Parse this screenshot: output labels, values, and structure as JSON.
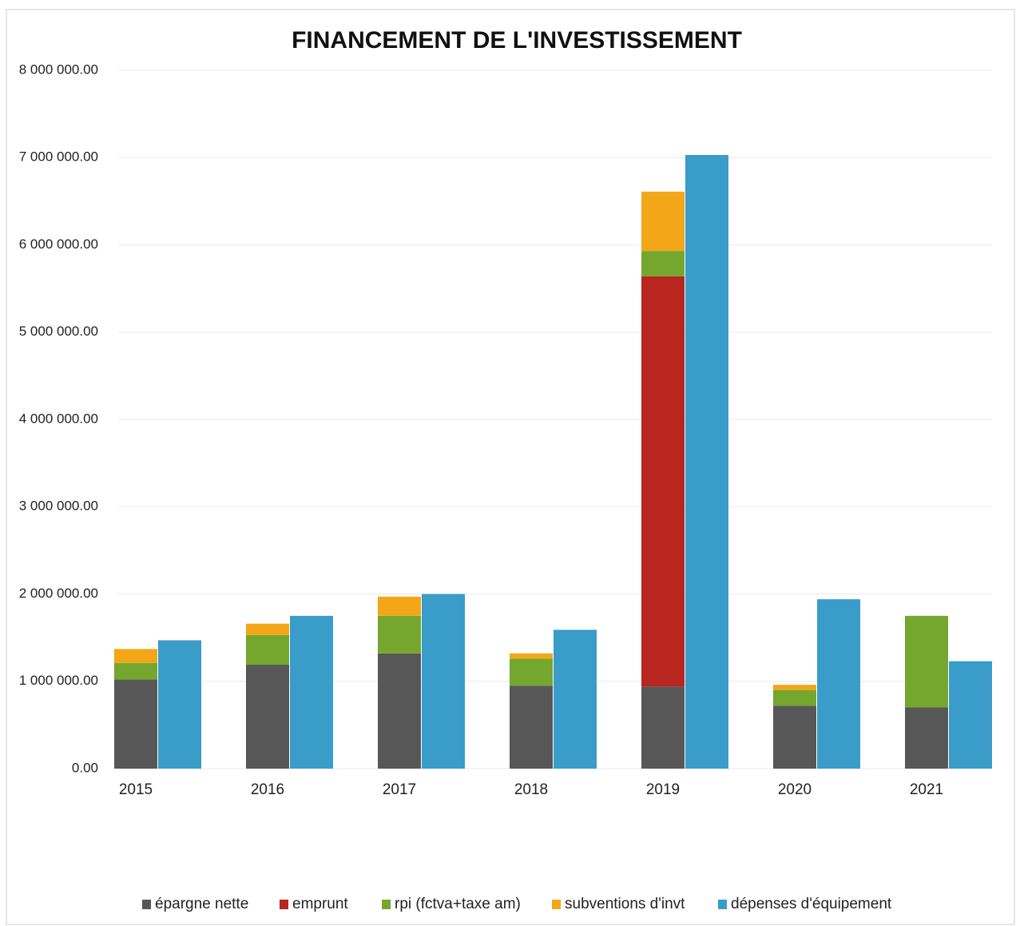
{
  "chart_data": {
    "type": "bar",
    "title": "FINANCEMENT DE L'INVESTISSEMENT",
    "categories": [
      "2015",
      "2016",
      "2017",
      "2018",
      "2019",
      "2020",
      "2021"
    ],
    "series": [
      {
        "name": "épargne nette",
        "color": "#575757",
        "stack": 1,
        "values": [
          1020000,
          1190000,
          1320000,
          950000,
          940000,
          720000,
          700000
        ]
      },
      {
        "name": "emprunt",
        "color": "#b8261f",
        "stack": 1,
        "values": [
          0,
          0,
          0,
          0,
          4700000,
          0,
          0
        ]
      },
      {
        "name": "rpi (fctva+taxe am)",
        "color": "#75a62e",
        "stack": 1,
        "values": [
          190000,
          340000,
          430000,
          310000,
          290000,
          180000,
          1050000
        ]
      },
      {
        "name": "subventions d'invt",
        "color": "#f2a618",
        "stack": 1,
        "values": [
          160000,
          130000,
          220000,
          60000,
          680000,
          60000,
          0
        ]
      },
      {
        "name": "dépenses d'équipement",
        "color": "#3a9cc8",
        "stack": 2,
        "values": [
          1470000,
          1750000,
          2000000,
          1590000,
          7030000,
          1940000,
          1230000
        ]
      }
    ],
    "ylim": [
      0,
      8000000
    ],
    "yticks": [
      {
        "value": 0,
        "label": "0.00"
      },
      {
        "value": 1000000,
        "label": "1 000 000.00"
      },
      {
        "value": 2000000,
        "label": "2 000 000.00"
      },
      {
        "value": 3000000,
        "label": "3 000 000.00"
      },
      {
        "value": 4000000,
        "label": "4 000 000.00"
      },
      {
        "value": 5000000,
        "label": "5 000 000.00"
      },
      {
        "value": 6000000,
        "label": "6 000 000.00"
      },
      {
        "value": 7000000,
        "label": "7 000 000.00"
      },
      {
        "value": 8000000,
        "label": "8 000 000.00"
      }
    ],
    "grid": true,
    "legend": "bottom"
  }
}
